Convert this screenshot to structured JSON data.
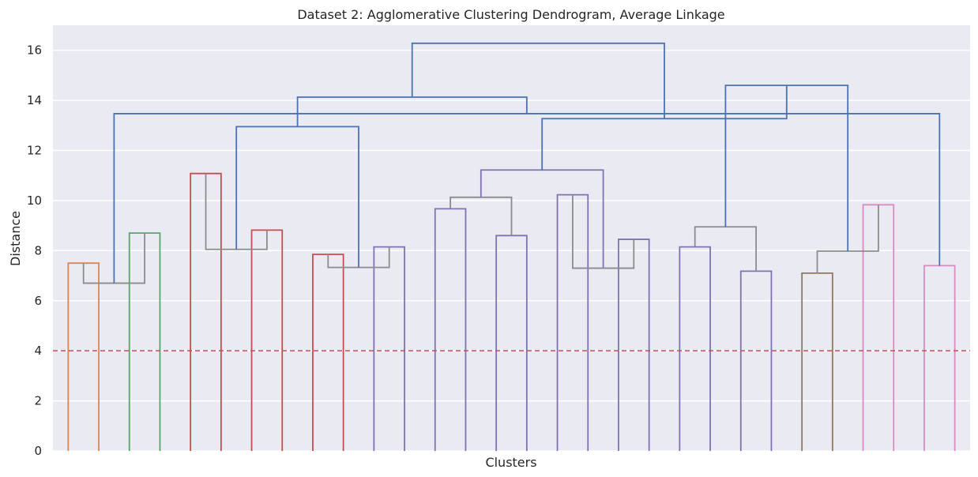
{
  "chart_data": {
    "type": "dendrogram",
    "title": "Dataset 2: Agglomerative Clustering Dendrogram, Average Linkage",
    "xlabel": "Clusters",
    "ylabel": "Distance",
    "ylim": [
      0,
      17
    ],
    "yticks": [
      0,
      2,
      4,
      6,
      8,
      10,
      12,
      14,
      16
    ],
    "grid": true,
    "leaf_count": 30,
    "threshold": {
      "value": 4,
      "color": "#c44e52",
      "style": "dashed"
    },
    "colors": {
      "background": "#eaeaf2",
      "grid": "#ffffff",
      "above_threshold": "#4c72b0",
      "orange": "#dd8452",
      "green": "#55a868",
      "red": "#c44e52",
      "purple": "#8172b3",
      "brown": "#937860",
      "pink": "#da8bc3",
      "gray": "#8c8c8c"
    },
    "merges": [
      {
        "left": 0,
        "right": 1,
        "height": 7.5,
        "color": "orange"
      },
      {
        "left": 2,
        "right": 3,
        "height": 8.7,
        "color": "green"
      },
      {
        "left": 4,
        "right": 5,
        "height": 11.08,
        "color": "red"
      },
      {
        "left": 6,
        "right": 7,
        "height": 8.82,
        "color": "red"
      },
      {
        "left": 8,
        "right": 9,
        "height": 7.85,
        "color": "red"
      },
      {
        "left": 10,
        "right": 11,
        "height": 8.15,
        "color": "purple"
      },
      {
        "left": 12,
        "right": 13,
        "height": 9.67,
        "color": "purple"
      },
      {
        "left": 14,
        "right": 15,
        "height": 8.6,
        "color": "purple"
      },
      {
        "left": 16,
        "right": 17,
        "height": 10.23,
        "color": "purple"
      },
      {
        "left": 18,
        "right": 19,
        "height": 8.45,
        "color": "purple"
      },
      {
        "left": 20,
        "right": 21,
        "height": 8.15,
        "color": "purple"
      },
      {
        "left": 22,
        "right": 23,
        "height": 7.18,
        "color": "purple"
      },
      {
        "left": 24,
        "right": 25,
        "height": 7.1,
        "color": "brown"
      },
      {
        "left": 26,
        "right": 27,
        "height": 9.83,
        "color": "pink"
      },
      {
        "left": 28,
        "right": 29,
        "height": 7.4,
        "color": "pink"
      },
      {
        "left": 30,
        "right": 31,
        "height": 6.7,
        "color": "gray"
      },
      {
        "left": 32,
        "right": 33,
        "height": 8.05,
        "color": "gray"
      },
      {
        "left": 34,
        "right": 35,
        "height": 7.33,
        "color": "gray"
      },
      {
        "left": 36,
        "right": 37,
        "height": 10.13,
        "color": "gray"
      },
      {
        "left": 38,
        "right": 39,
        "height": 7.3,
        "color": "gray"
      },
      {
        "left": 40,
        "right": 41,
        "height": 8.95,
        "color": "gray"
      },
      {
        "left": 42,
        "right": 43,
        "height": 7.98,
        "color": "gray"
      },
      {
        "left": 44,
        "right": 45,
        "height": 13.47,
        "color": "above_threshold"
      },
      {
        "left": 46,
        "right": 47,
        "height": 12.95,
        "color": "above_threshold"
      },
      {
        "left": 48,
        "right": 49,
        "height": 11.22,
        "color": "purple"
      },
      {
        "left": 50,
        "right": 51,
        "height": 14.6,
        "color": "above_threshold"
      },
      {
        "left": 52,
        "right": 53,
        "height": 14.13,
        "color": "above_threshold"
      },
      {
        "left": 54,
        "right": 55,
        "height": 13.27,
        "color": "above_threshold"
      },
      {
        "left": 56,
        "right": 57,
        "height": 16.28,
        "color": "above_threshold"
      }
    ]
  }
}
